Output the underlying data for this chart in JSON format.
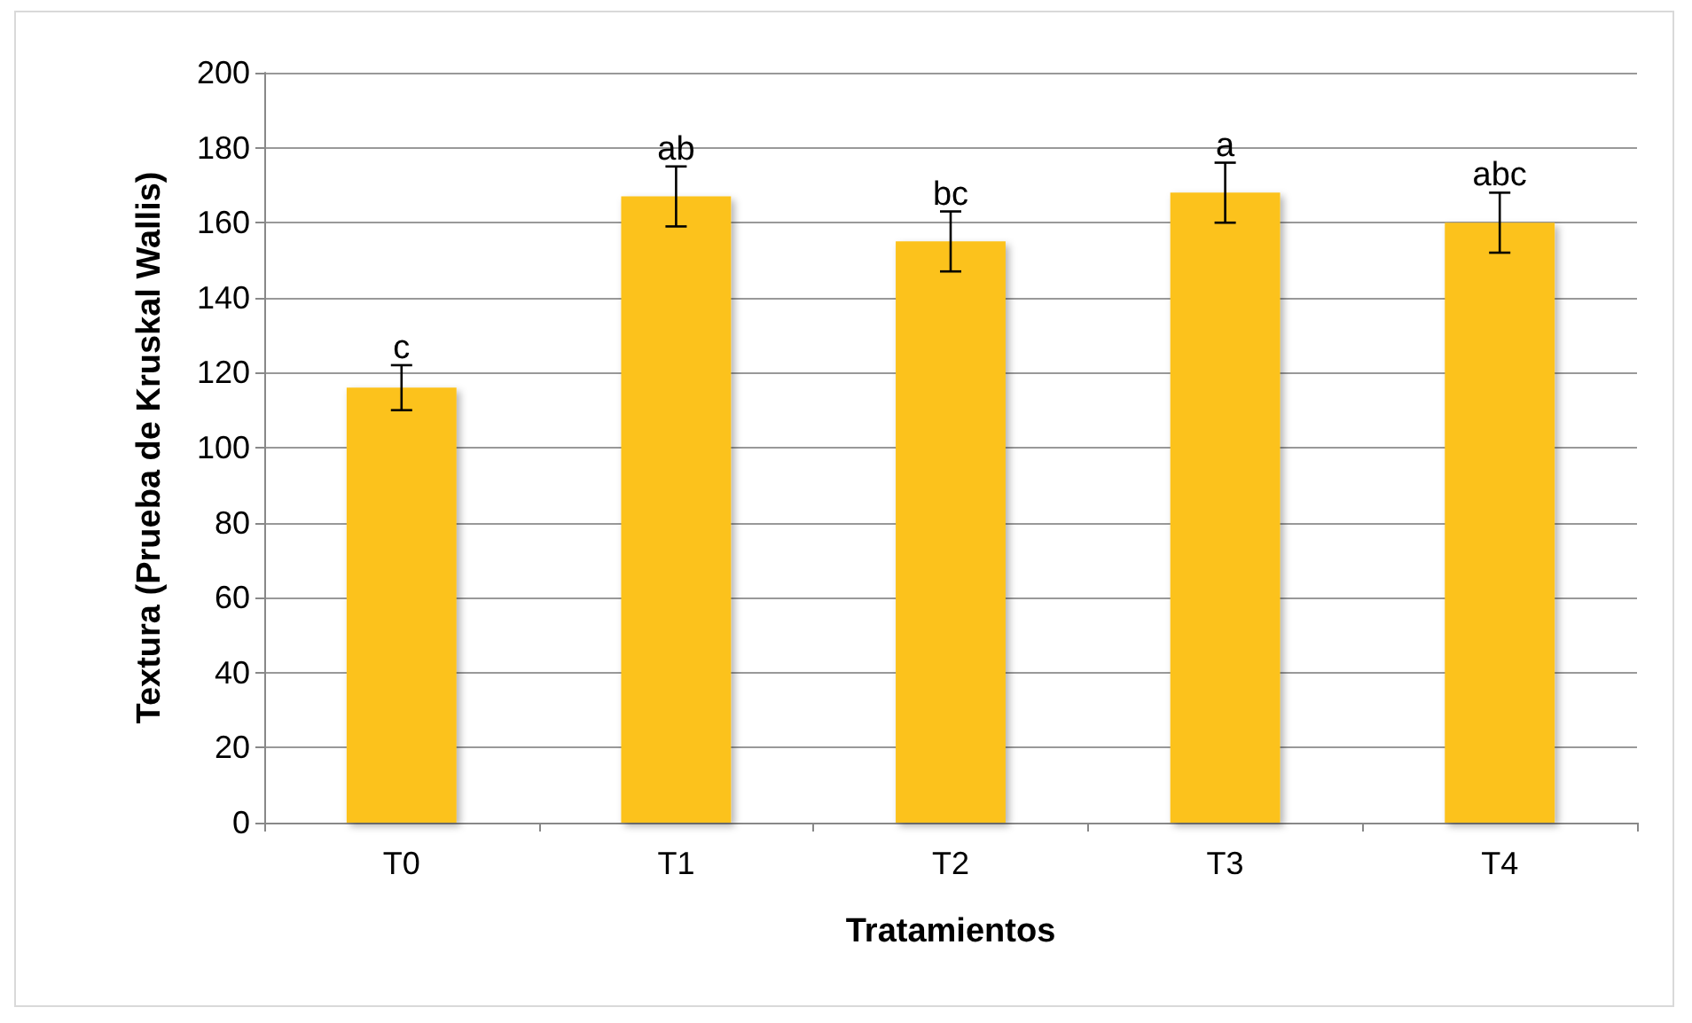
{
  "chart_data": {
    "type": "bar",
    "xlabel": "Tratamientos",
    "ylabel": "Textura (Prueba de Kruskal Wallis)",
    "categories": [
      "T0",
      "T1",
      "T2",
      "T3",
      "T4"
    ],
    "values": [
      116,
      167,
      155,
      168,
      160
    ],
    "errors": [
      6,
      8,
      8,
      8,
      8
    ],
    "color": "#fcc21a",
    "ylim": [
      0,
      200
    ],
    "yticks": [
      0,
      20,
      40,
      60,
      80,
      100,
      120,
      140,
      160,
      180,
      200
    ],
    "grid": "y",
    "annotations": [
      {
        "text": "c",
        "x": "T0",
        "y": 122
      },
      {
        "text": "ab",
        "x": "T1",
        "y": 175
      },
      {
        "text": "bc",
        "x": "T2",
        "y": 163
      },
      {
        "text": "a",
        "x": "T3",
        "y": 176
      },
      {
        "text": "abc",
        "x": "T4",
        "y": 168
      }
    ]
  }
}
